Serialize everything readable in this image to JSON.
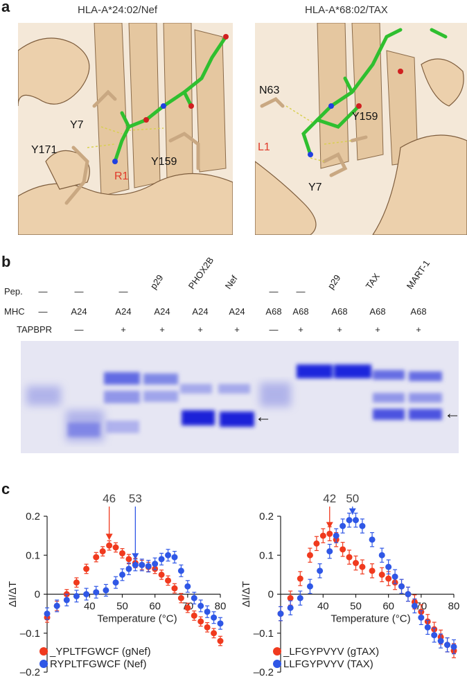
{
  "figure": {
    "panel_a": {
      "letter": "a",
      "left": {
        "title": "HLA-A*24:02/Nef",
        "residues": [
          "Y7",
          "Y171",
          "Y159"
        ],
        "highlight": "R1"
      },
      "right": {
        "title": "HLA-A*68:02/TAX",
        "residues": [
          "N63",
          "Y159",
          "Y7"
        ],
        "highlight": "L1"
      }
    },
    "panel_b": {
      "letter": "b",
      "row_labels": {
        "pep": "Pep.",
        "mhc": "MHC",
        "tapbpr": "TAPBPR"
      },
      "lanes": [
        {
          "pep": "—",
          "mhc": "—",
          "tapbpr": ""
        },
        {
          "pep": "—",
          "mhc": "A24",
          "tapbpr": "—"
        },
        {
          "pep": "—",
          "mhc": "A24",
          "tapbpr": "+"
        },
        {
          "pep": "p29",
          "mhc": "A24",
          "tapbpr": "+"
        },
        {
          "pep": "PHOX2B",
          "mhc": "A24",
          "tapbpr": "+"
        },
        {
          "pep": "Nef",
          "mhc": "A24",
          "tapbpr": "+"
        },
        {
          "pep": "—",
          "mhc": "A68",
          "tapbpr": "—"
        },
        {
          "pep": "—",
          "mhc": "A68",
          "tapbpr": "+"
        },
        {
          "pep": "p29",
          "mhc": "A68",
          "tapbpr": "+"
        },
        {
          "pep": "TAX",
          "mhc": "A68",
          "tapbpr": "+"
        },
        {
          "pep": "MART-1",
          "mhc": "A68",
          "tapbpr": "+"
        }
      ],
      "arrow_glyph": "←"
    },
    "panel_c": {
      "letter": "c"
    }
  },
  "chart_data": [
    {
      "type": "line",
      "xlabel": "Temperature (°C)",
      "ylabel": "ΔI/ΔT",
      "xlim": [
        27,
        80
      ],
      "ylim": [
        -0.2,
        0.2
      ],
      "xticks": [
        40,
        50,
        60,
        70,
        80
      ],
      "yticks": [
        -0.2,
        -0.1,
        0,
        0.1,
        0.2
      ],
      "ytick_labels": [
        "–0.2",
        "–0.1",
        "0",
        "0.1",
        "0.2"
      ],
      "legend_position": "bottom-left",
      "annotations": [
        {
          "text": "46",
          "x": 46,
          "color": "#f03a1e"
        },
        {
          "text": "53",
          "x": 54,
          "color": "#2f57e6"
        }
      ],
      "series": [
        {
          "name": "_YPLTFGWCF (gNef)",
          "color": "#f03a1e",
          "x": [
            27,
            30,
            33,
            36,
            39,
            42,
            44,
            46,
            48,
            50,
            52,
            54,
            56,
            58,
            60,
            62,
            64,
            66,
            68,
            70,
            72,
            74,
            76,
            78,
            80
          ],
          "y": [
            -0.06,
            -0.03,
            0.0,
            0.03,
            0.065,
            0.095,
            0.11,
            0.125,
            0.12,
            0.105,
            0.09,
            0.08,
            0.075,
            0.07,
            0.065,
            0.05,
            0.035,
            0.015,
            -0.01,
            -0.035,
            -0.055,
            -0.07,
            -0.085,
            -0.1,
            -0.12
          ],
          "err": 0.012
        },
        {
          "name": "RYPLTFGWCF (Nef)",
          "color": "#2f57e6",
          "x": [
            27,
            30,
            33,
            36,
            39,
            42,
            45,
            48,
            50,
            52,
            54,
            56,
            58,
            60,
            62,
            64,
            66,
            68,
            70,
            72,
            74,
            76,
            78,
            80
          ],
          "y": [
            -0.05,
            -0.03,
            -0.015,
            -0.005,
            0.0,
            0.005,
            0.01,
            0.03,
            0.05,
            0.065,
            0.075,
            0.075,
            0.072,
            0.078,
            0.09,
            0.1,
            0.095,
            0.06,
            0.02,
            -0.01,
            -0.03,
            -0.045,
            -0.06,
            -0.075
          ],
          "err": 0.015
        }
      ]
    },
    {
      "type": "line",
      "xlabel": "Temperature (°C)",
      "ylabel": "ΔI/ΔT",
      "xlim": [
        27,
        80
      ],
      "ylim": [
        -0.2,
        0.2
      ],
      "xticks": [
        40,
        50,
        60,
        70,
        80
      ],
      "yticks": [
        -0.2,
        -0.1,
        0,
        0.1,
        0.2
      ],
      "ytick_labels": [
        "–0.2",
        "–0.1",
        "0",
        "0.1",
        "0.2"
      ],
      "legend_position": "bottom-left",
      "annotations": [
        {
          "text": "42",
          "x": 42,
          "color": "#f03a1e"
        },
        {
          "text": "50",
          "x": 49,
          "color": "#2f57e6"
        }
      ],
      "series": [
        {
          "name": "_LFGYPVYV (gTAX)",
          "color": "#f03a1e",
          "x": [
            27,
            30,
            33,
            36,
            38,
            40,
            42,
            44,
            46,
            48,
            50,
            52,
            55,
            58,
            60,
            62,
            64,
            66,
            68,
            70,
            72,
            74,
            76,
            78,
            80
          ],
          "y": [
            -0.05,
            -0.01,
            0.04,
            0.1,
            0.13,
            0.15,
            0.155,
            0.14,
            0.115,
            0.095,
            0.08,
            0.07,
            0.06,
            0.05,
            0.04,
            0.03,
            0.02,
            0.0,
            -0.02,
            -0.045,
            -0.07,
            -0.09,
            -0.11,
            -0.13,
            -0.145
          ],
          "err": 0.018
        },
        {
          "name": "LLFGYPVYV (TAX)",
          "color": "#2f57e6",
          "x": [
            27,
            30,
            33,
            36,
            39,
            42,
            44,
            46,
            48,
            50,
            52,
            55,
            58,
            60,
            62,
            64,
            66,
            68,
            70,
            72,
            74,
            76,
            78,
            80
          ],
          "y": [
            -0.05,
            -0.035,
            -0.01,
            0.02,
            0.06,
            0.11,
            0.15,
            0.175,
            0.19,
            0.19,
            0.175,
            0.14,
            0.1,
            0.07,
            0.045,
            0.02,
            0.0,
            -0.03,
            -0.06,
            -0.085,
            -0.105,
            -0.12,
            -0.13,
            -0.135
          ],
          "err": 0.018
        }
      ]
    }
  ]
}
